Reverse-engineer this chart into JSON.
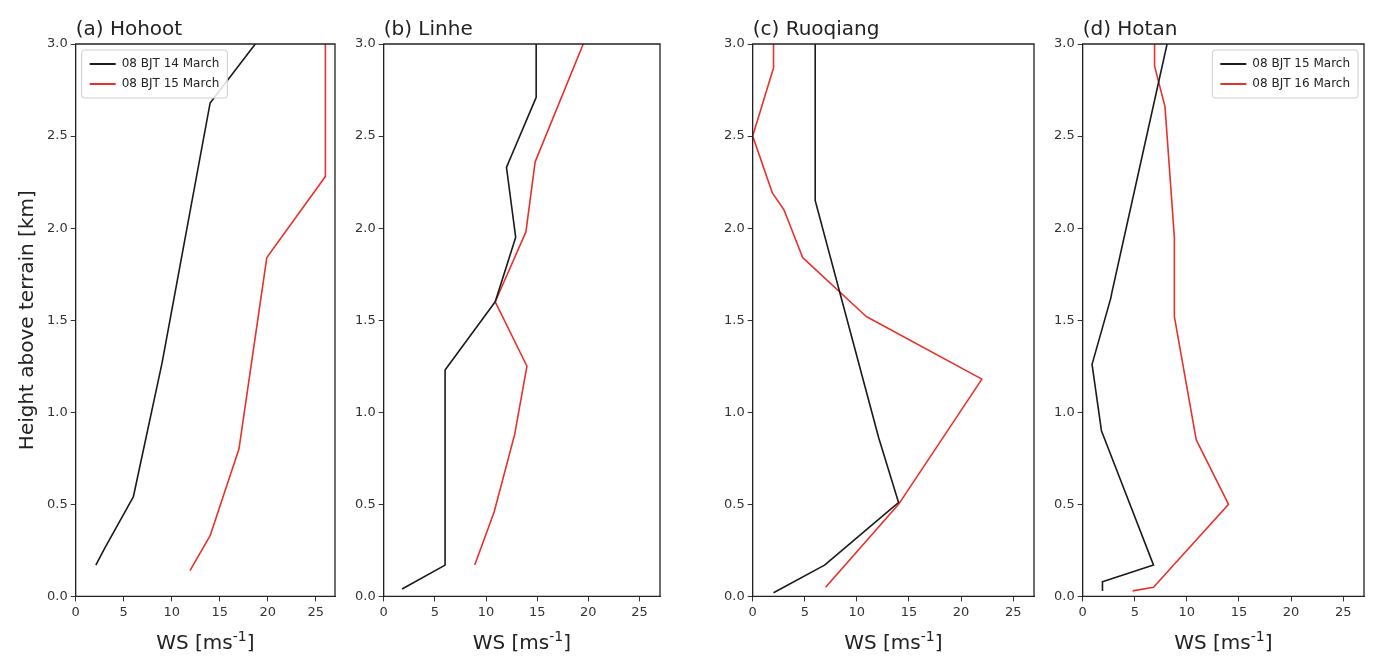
{
  "chart_data": [
    {
      "type": "line",
      "title": "(a) Hohoot",
      "xlabel": "WS [ms$^{-1}$]",
      "ylabel": "Height above terrain [km]",
      "xlim": [
        0,
        27
      ],
      "ylim": [
        0,
        3
      ],
      "xticks": [
        0,
        5,
        10,
        15,
        20,
        25
      ],
      "yticks": [
        {
          "value": 0,
          "label": "0.0"
        },
        {
          "value": 0.5,
          "label": "0.5"
        },
        {
          "value": 1,
          "label": "1.0"
        },
        {
          "value": 1.5,
          "label": "1.5"
        },
        {
          "value": 2,
          "label": "2.0"
        },
        {
          "value": 2.5,
          "label": "2.5"
        },
        {
          "value": 3,
          "label": "3.0"
        }
      ],
      "grid": false,
      "legend": "top left",
      "marker": "none",
      "line_style": "solid",
      "series": [
        {
          "name": "08 BJT 14 March",
          "color": "#1a1a1a",
          "x": [
            2.1,
            3,
            6,
            9,
            14,
            18.7
          ],
          "values": [
            0.17,
            0.26,
            0.54,
            1.27,
            2.68,
            3.0
          ]
        },
        {
          "name": "08 BJT 15 March",
          "color": "#e8312a",
          "x": [
            11.9,
            14,
            17,
            19.9,
            26,
            26
          ],
          "values": [
            0.14,
            0.33,
            0.8,
            1.84,
            2.28,
            3.0
          ]
        }
      ]
    },
    {
      "type": "line",
      "title": "(b) Linhe",
      "xlabel": "WS [ms$^{-1}$]",
      "xlim": [
        0,
        27
      ],
      "ylim": [
        0,
        3
      ],
      "xticks": [
        0,
        5,
        10,
        15,
        20,
        25
      ],
      "yticks": [
        {
          "value": 0,
          "label": "0.0"
        },
        {
          "value": 0.5,
          "label": "0.5"
        },
        {
          "value": 1,
          "label": "1.0"
        },
        {
          "value": 1.5,
          "label": "1.5"
        },
        {
          "value": 2,
          "label": "2.0"
        },
        {
          "value": 2.5,
          "label": "2.5"
        },
        {
          "value": 3,
          "label": "3.0"
        }
      ],
      "grid": false,
      "marker": "none",
      "line_style": "solid",
      "series": [
        {
          "color": "#1a1a1a",
          "x": [
            1.8,
            6,
            6,
            10.9,
            12.9,
            12,
            14.9,
            14.9
          ],
          "values": [
            0.04,
            0.17,
            1.23,
            1.6,
            1.95,
            2.33,
            2.71,
            3.0
          ]
        },
        {
          "color": "#e8312a",
          "x": [
            8.9,
            10.8,
            12.8,
            14,
            10.9,
            13.9,
            14.8,
            19.5
          ],
          "values": [
            0.17,
            0.46,
            0.88,
            1.25,
            1.6,
            1.98,
            2.36,
            3.0
          ]
        }
      ]
    },
    {
      "type": "line",
      "title": "(c) Ruoqiang",
      "xlabel": "WS [ms$^{-1}$]",
      "xlim": [
        0,
        27
      ],
      "ylim": [
        0,
        3
      ],
      "xticks": [
        0,
        5,
        10,
        15,
        20,
        25
      ],
      "yticks": [
        {
          "value": 0,
          "label": "0.0"
        },
        {
          "value": 0.5,
          "label": "0.5"
        },
        {
          "value": 1,
          "label": "1.0"
        },
        {
          "value": 1.5,
          "label": "1.5"
        },
        {
          "value": 2,
          "label": "2.0"
        },
        {
          "value": 2.5,
          "label": "2.5"
        },
        {
          "value": 3,
          "label": "3.0"
        }
      ],
      "grid": false,
      "marker": "none",
      "line_style": "solid",
      "series": [
        {
          "color": "#1a1a1a",
          "x": [
            2,
            6.9,
            14,
            12.1,
            6,
            6
          ],
          "values": [
            0.02,
            0.17,
            0.51,
            0.86,
            2.15,
            3.0
          ]
        },
        {
          "color": "#e8312a",
          "x": [
            7,
            14,
            22,
            10.9,
            4.8,
            3,
            1.9,
            0,
            2,
            2
          ],
          "values": [
            0.05,
            0.5,
            1.18,
            1.52,
            1.84,
            2.1,
            2.19,
            2.5,
            2.87,
            3.0
          ]
        }
      ]
    },
    {
      "type": "line",
      "title": "(d) Hotan",
      "xlabel": "WS [ms$^{-1}$]",
      "xlim": [
        0,
        27
      ],
      "ylim": [
        0,
        3
      ],
      "xticks": [
        0,
        5,
        10,
        15,
        20,
        25
      ],
      "yticks": [
        {
          "value": 0,
          "label": "0.0"
        },
        {
          "value": 0.5,
          "label": "0.5"
        },
        {
          "value": 1,
          "label": "1.0"
        },
        {
          "value": 1.5,
          "label": "1.5"
        },
        {
          "value": 2,
          "label": "2.0"
        },
        {
          "value": 2.5,
          "label": "2.5"
        },
        {
          "value": 3,
          "label": "3.0"
        }
      ],
      "grid": false,
      "legend": "top right",
      "marker": "none",
      "line_style": "solid",
      "series": [
        {
          "name": "08 BJT 15 March",
          "color": "#1a1a1a",
          "x": [
            1.9,
            1.9,
            6.8,
            1.8,
            0.9,
            2.7,
            2.8,
            8.1
          ],
          "values": [
            0.03,
            0.08,
            0.17,
            0.9,
            1.26,
            1.62,
            1.65,
            3.0
          ]
        },
        {
          "name": "08 BJT 16 March",
          "color": "#e8312a",
          "x": [
            4.8,
            6.8,
            14,
            10.9,
            8.8,
            8.8,
            7.9,
            6.9,
            6.9
          ],
          "values": [
            0.03,
            0.05,
            0.5,
            0.85,
            1.52,
            1.95,
            2.66,
            2.88,
            3.0
          ]
        }
      ]
    }
  ]
}
